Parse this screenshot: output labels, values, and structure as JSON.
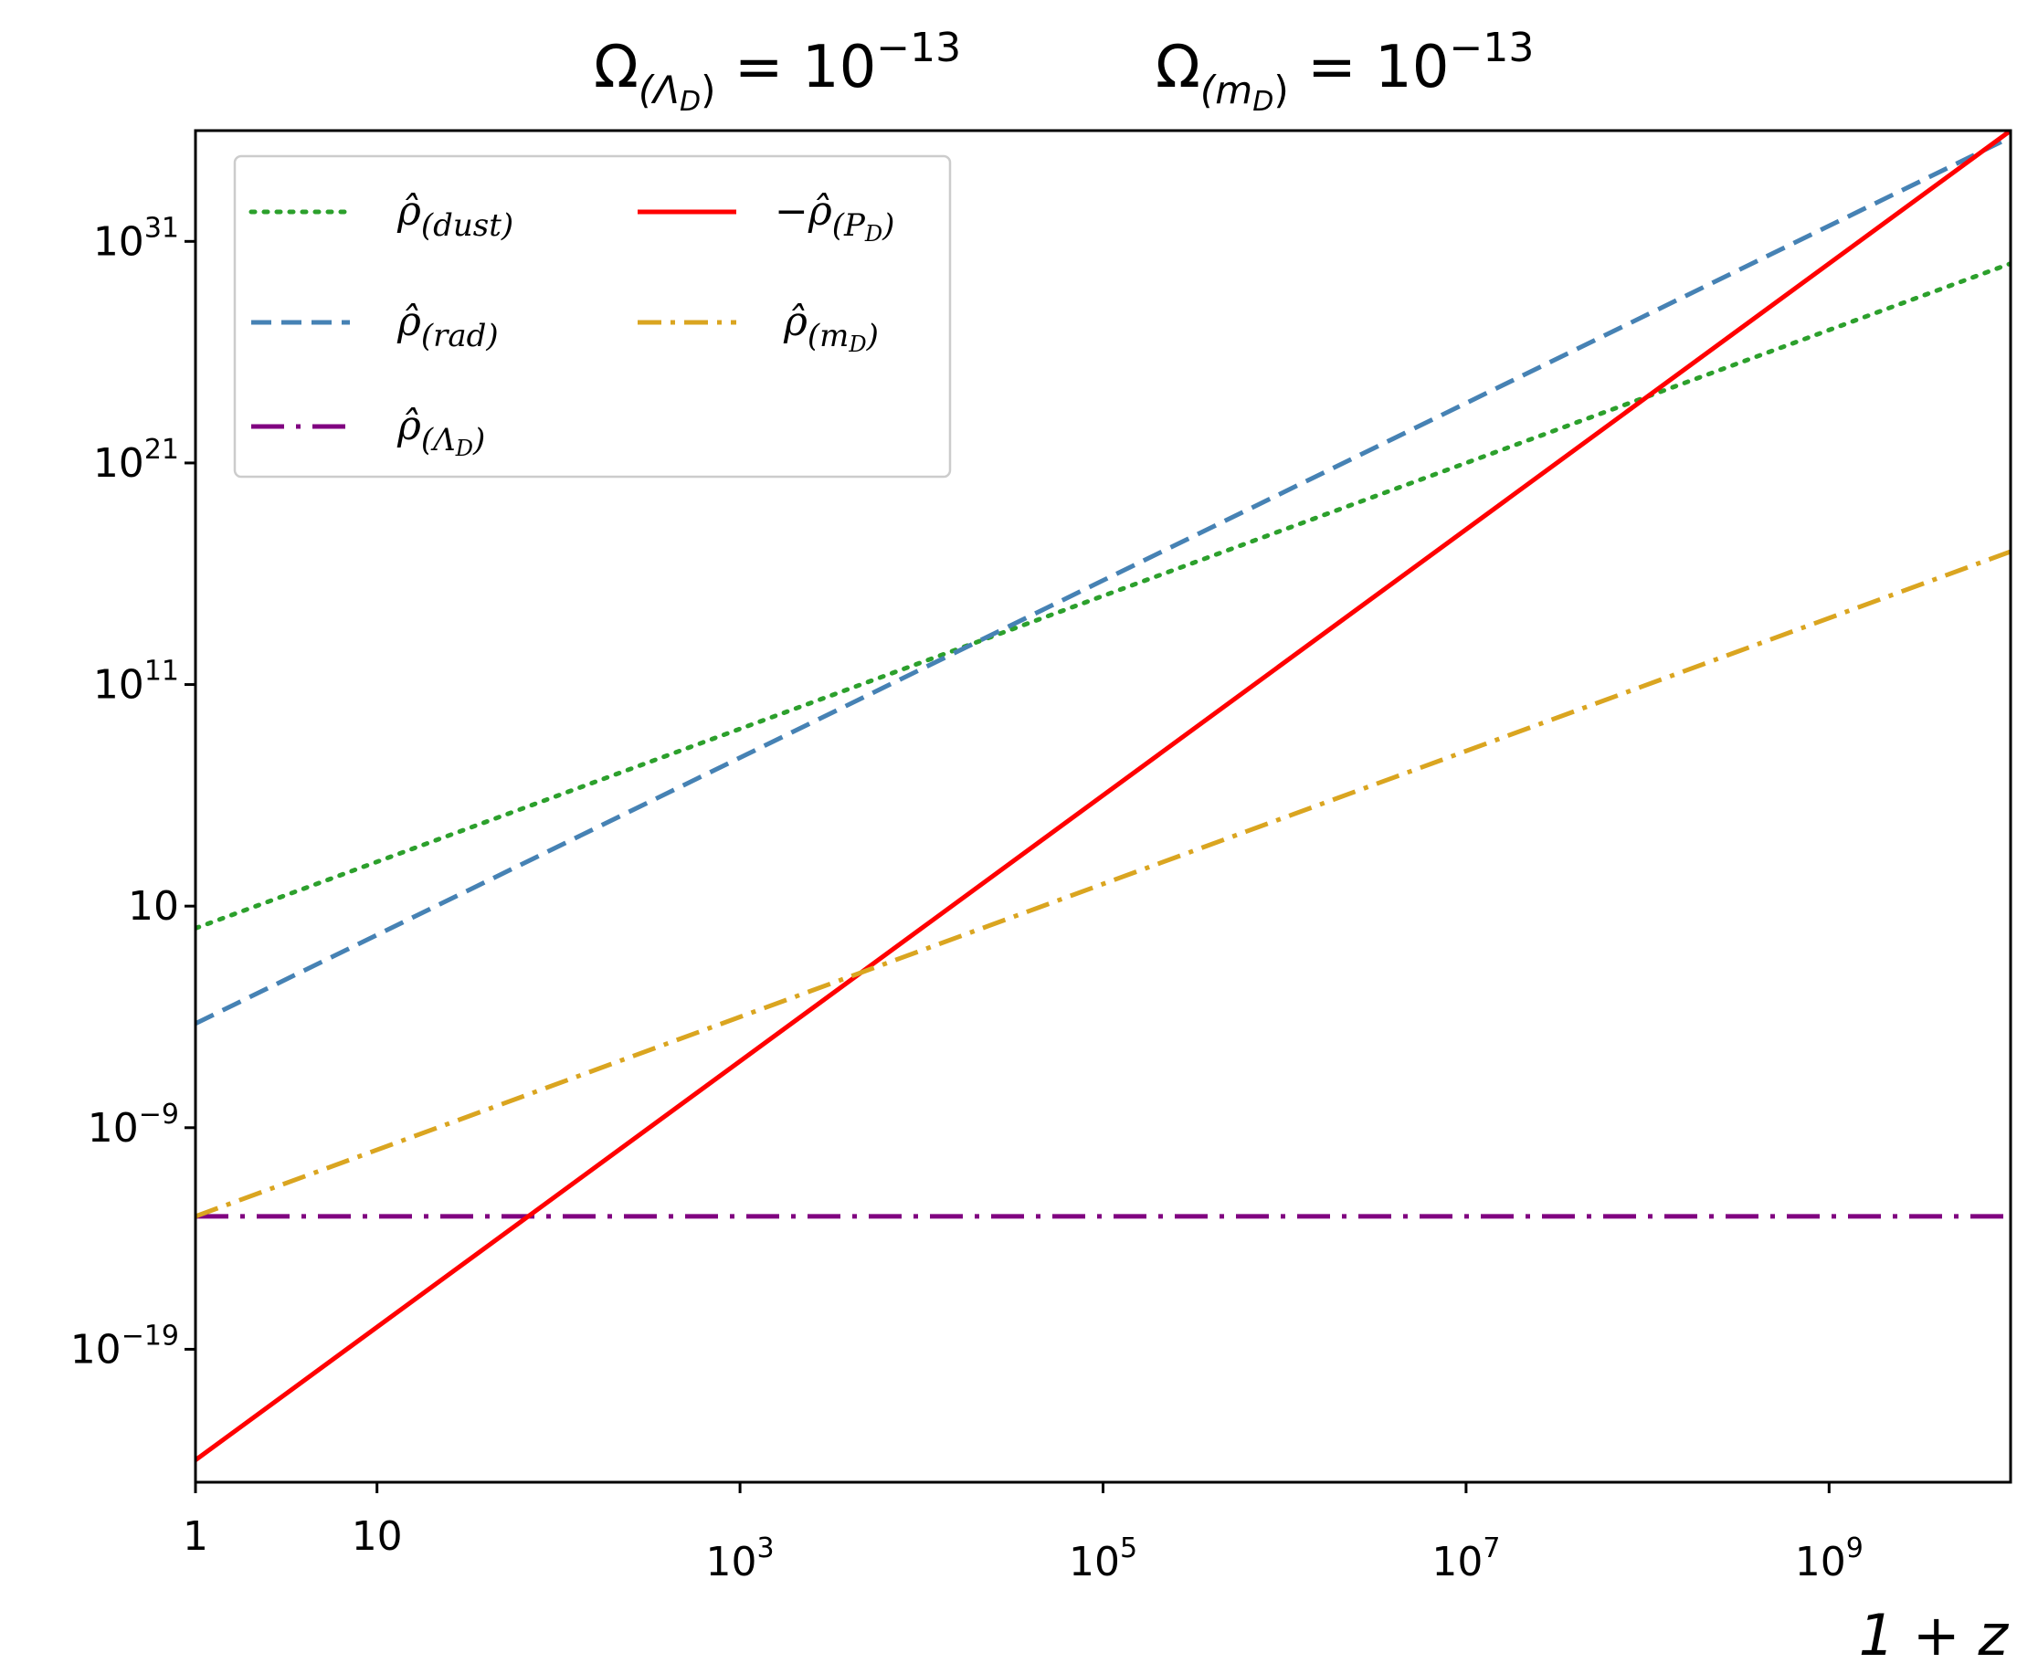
{
  "chart_data": {
    "type": "line",
    "title": {
      "left": {
        "symbol": "Ω",
        "subscript": "(Λ",
        "subsub": "D",
        "close": ")",
        "equals": " = 10",
        "exponent": "−13"
      },
      "right": {
        "symbol": "Ω",
        "subscript": "(m",
        "subsub": "D",
        "close": ")",
        "equals": " = 10",
        "exponent": "−13"
      }
    },
    "xlabel": "1 + z",
    "ylabel": "",
    "xscale": "log",
    "yscale": "log",
    "xlim_log10": [
      0,
      10
    ],
    "ylim_log10": [
      -25,
      36
    ],
    "x_ticks": [
      {
        "log10": 0,
        "base": "1",
        "exp": ""
      },
      {
        "log10": 1,
        "base": "10",
        "exp": ""
      },
      {
        "log10": 3,
        "base": "10",
        "exp": "3"
      },
      {
        "log10": 5,
        "base": "10",
        "exp": "5"
      },
      {
        "log10": 7,
        "base": "10",
        "exp": "7"
      },
      {
        "log10": 9,
        "base": "10",
        "exp": "9"
      }
    ],
    "y_ticks": [
      {
        "log10": 31,
        "base": "10",
        "exp": "31"
      },
      {
        "log10": 21,
        "base": "10",
        "exp": "21"
      },
      {
        "log10": 11,
        "base": "10",
        "exp": "11"
      },
      {
        "log10": 1,
        "base": "10",
        "exp": ""
      },
      {
        "log10": -9,
        "base": "10",
        "exp": "−9"
      },
      {
        "log10": -19,
        "base": "10",
        "exp": "−19"
      }
    ],
    "series": [
      {
        "id": "dust",
        "label_sym": "ρ̂",
        "label_sub": "(dust)",
        "sign": "",
        "color": "#2ca02c",
        "dash": "dotted",
        "log_x": [
          0,
          10
        ],
        "log_y": [
          0.0,
          30.0
        ],
        "note": "slope 3 in log-log"
      },
      {
        "id": "rad",
        "label_sym": "ρ̂",
        "label_sub": "(rad)",
        "sign": "",
        "color": "#4682b4",
        "dash": "dashed",
        "log_x": [
          0,
          10
        ],
        "log_y": [
          -4.3,
          35.7
        ],
        "note": "slope 4 in log-log"
      },
      {
        "id": "lambdaD",
        "label_sym": "ρ̂",
        "label_sub": "(Λ",
        "label_subsub": "D",
        "label_close": ")",
        "sign": "",
        "color": "#800080",
        "dash": "dashdot-long",
        "log_x": [
          0,
          10
        ],
        "log_y": [
          -13.0,
          -13.0
        ],
        "note": "constant"
      },
      {
        "id": "PD",
        "label_sym": "ρ̂",
        "label_sub": "(P",
        "label_subsub": "D",
        "label_close": ")",
        "sign": "−",
        "color": "#ff0000",
        "dash": "solid",
        "log_x": [
          0,
          10
        ],
        "log_y": [
          -24.0,
          36.0
        ],
        "note": "slope 6 in log-log"
      },
      {
        "id": "mD",
        "label_sym": "ρ̂",
        "label_sub": "(m",
        "label_subsub": "D",
        "label_close": ")",
        "sign": "",
        "color": "#daa520",
        "dash": "dashdot",
        "log_x": [
          0,
          10
        ],
        "log_y": [
          -13.0,
          17.0
        ],
        "note": "slope 3 in log-log"
      }
    ],
    "legend_location": "upper-left",
    "grid": false
  }
}
